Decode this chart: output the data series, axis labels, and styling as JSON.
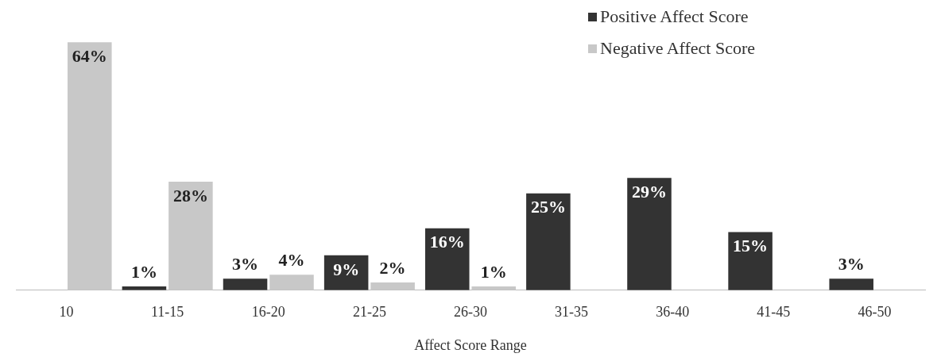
{
  "chart_data": {
    "type": "bar",
    "xlabel": "Affect Score Range",
    "legend": "top right",
    "grid": false,
    "categories": [
      "10",
      "11-15",
      "16-20",
      "21-25",
      "26-30",
      "31-35",
      "36-40",
      "41-45",
      "46-50"
    ],
    "series": [
      {
        "name": "Positive Affect Score",
        "color": "#333333",
        "values": [
          null,
          1,
          3,
          9,
          16,
          25,
          29,
          15,
          3
        ],
        "value_labels": [
          null,
          "1%",
          "3%",
          "9%",
          "16%",
          "25%",
          "29%",
          "15%",
          "3%"
        ]
      },
      {
        "name": "Negative Affect Score",
        "color": "#c8c8c8",
        "values": [
          64,
          28,
          4,
          2,
          1,
          null,
          null,
          null,
          null
        ],
        "value_labels": [
          "64%",
          "28%",
          "4%",
          "2%",
          "1%",
          null,
          null,
          null,
          null
        ]
      }
    ]
  }
}
